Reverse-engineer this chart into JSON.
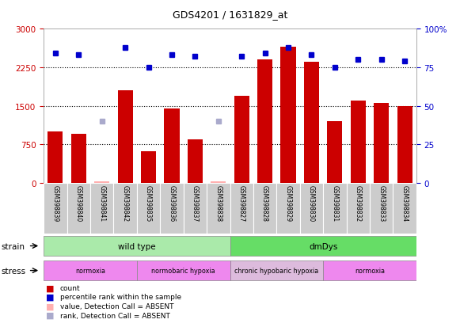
{
  "title": "GDS4201 / 1631829_at",
  "samples": [
    "GSM398839",
    "GSM398840",
    "GSM398841",
    "GSM398842",
    "GSM398835",
    "GSM398836",
    "GSM398837",
    "GSM398838",
    "GSM398827",
    "GSM398828",
    "GSM398829",
    "GSM398830",
    "GSM398831",
    "GSM398832",
    "GSM398833",
    "GSM398834"
  ],
  "bar_values": [
    1000,
    950,
    30,
    1800,
    620,
    1450,
    850,
    30,
    1700,
    2400,
    2650,
    2350,
    1200,
    1600,
    1550,
    1500
  ],
  "bar_absent": [
    false,
    false,
    true,
    false,
    false,
    false,
    false,
    true,
    false,
    false,
    false,
    false,
    false,
    false,
    false,
    false
  ],
  "percentile_values": [
    84,
    83,
    40,
    88,
    75,
    83,
    82,
    40,
    82,
    84,
    88,
    83,
    75,
    80,
    80,
    79
  ],
  "percentile_absent": [
    false,
    false,
    true,
    false,
    false,
    false,
    false,
    true,
    false,
    false,
    false,
    false,
    false,
    false,
    false,
    false
  ],
  "bar_color": "#cc0000",
  "bar_absent_color": "#ffb0b0",
  "dot_color": "#0000cc",
  "dot_absent_color": "#aaaacc",
  "ylim_left": [
    0,
    3000
  ],
  "ylim_right": [
    0,
    100
  ],
  "yticks_left": [
    0,
    750,
    1500,
    2250,
    3000
  ],
  "yticks_right": [
    0,
    25,
    50,
    75,
    100
  ],
  "strain_groups": [
    {
      "label": "wild type",
      "start": 0,
      "end": 8,
      "color": "#aaeaaa"
    },
    {
      "label": "dmDys",
      "start": 8,
      "end": 16,
      "color": "#66dd66"
    }
  ],
  "stress_groups": [
    {
      "label": "normoxia",
      "start": 0,
      "end": 4,
      "color": "#ee88ee"
    },
    {
      "label": "normobaric hypoxia",
      "start": 4,
      "end": 8,
      "color": "#ee88ee"
    },
    {
      "label": "chronic hypobaric hypoxia",
      "start": 8,
      "end": 12,
      "color": "#ddbbdd"
    },
    {
      "label": "normoxia",
      "start": 12,
      "end": 16,
      "color": "#ee88ee"
    }
  ],
  "legend_items": [
    {
      "label": "count",
      "color": "#cc0000"
    },
    {
      "label": "percentile rank within the sample",
      "color": "#0000cc"
    },
    {
      "label": "value, Detection Call = ABSENT",
      "color": "#ffb0b0"
    },
    {
      "label": "rank, Detection Call = ABSENT",
      "color": "#aaaacc"
    }
  ],
  "strain_label": "strain",
  "stress_label": "stress",
  "background_color": "#ffffff"
}
